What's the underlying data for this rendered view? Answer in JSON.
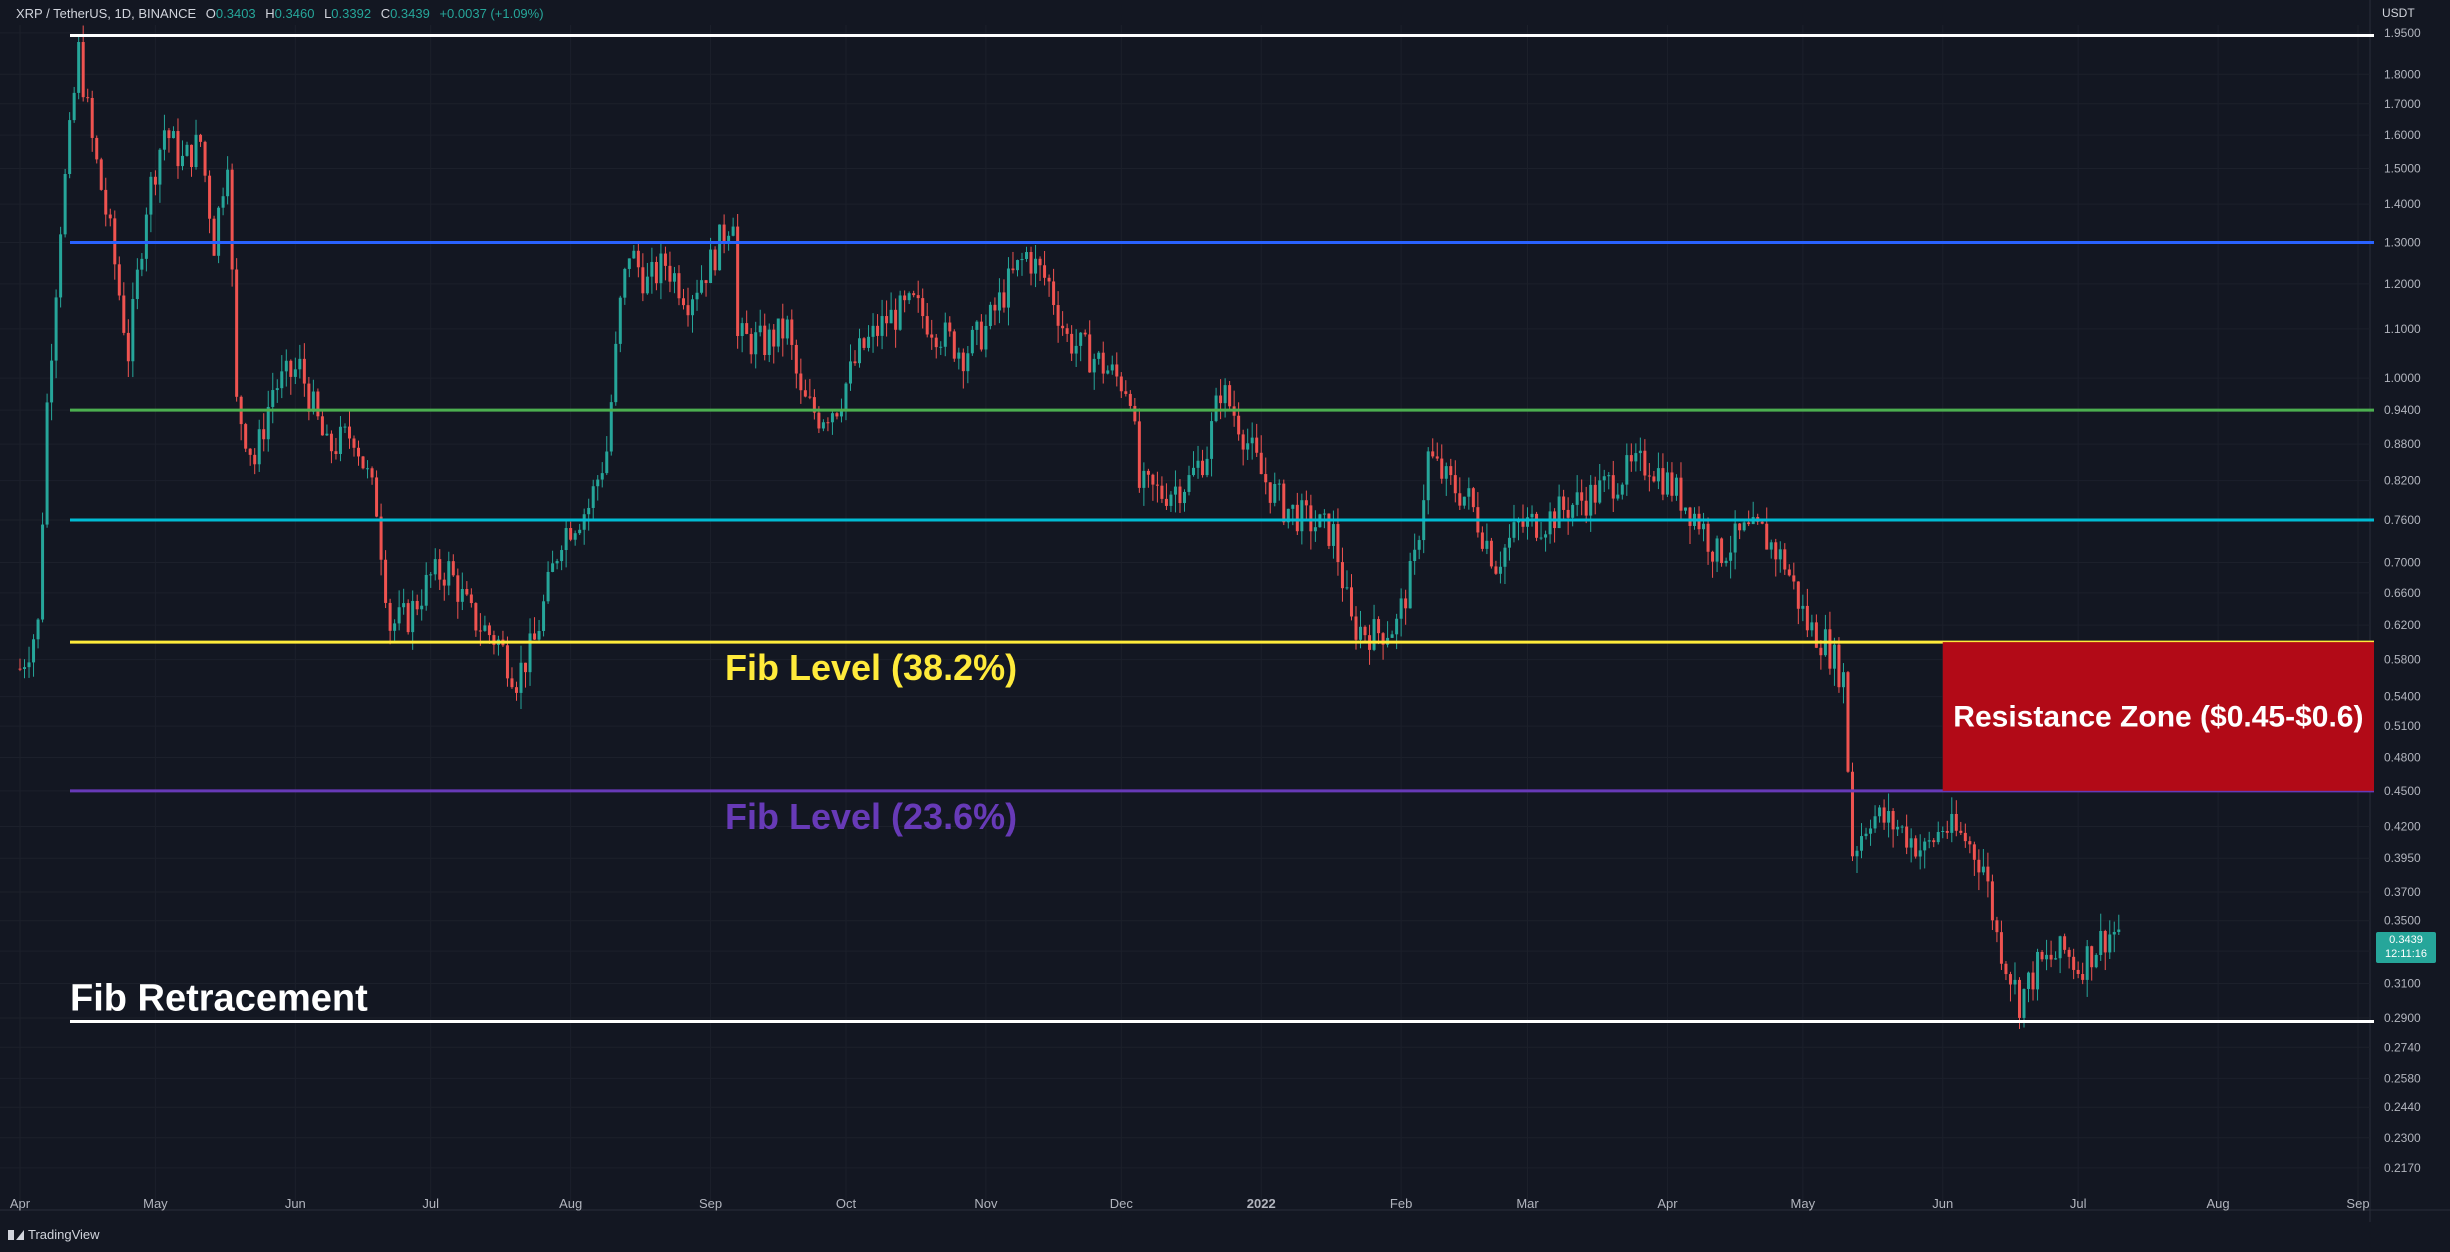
{
  "header": {
    "symbol": "XRP / TetherUS, 1D, BINANCE",
    "open_label": "O",
    "open": "0.3403",
    "high_label": "H",
    "high": "0.3460",
    "low_label": "L",
    "low": "0.3392",
    "close_label": "C",
    "close": "0.3439",
    "change": "+0.0037 (+1.09%)"
  },
  "axis_unit": "USDT",
  "last_price": {
    "value": "0.3439",
    "countdown": "12:11:16",
    "color": "#26a69a"
  },
  "footer": {
    "brand": "TradingView"
  },
  "colors": {
    "background": "#131722",
    "up": "#26a69a",
    "down": "#ef5350",
    "grid": "#1e222d"
  },
  "chart_data": {
    "type": "candlestick",
    "scale": "log",
    "ylim": [
      0.2,
      1.98
    ],
    "x_range": [
      "2021-04-01",
      "2022-09-01"
    ],
    "y_ticks": [
      "1.9500",
      "1.8000",
      "1.7000",
      "1.6000",
      "1.5000",
      "1.4000",
      "1.3000",
      "1.2000",
      "1.1000",
      "1.0000",
      "0.9400",
      "0.8800",
      "0.8200",
      "0.7600",
      "0.7000",
      "0.6600",
      "0.6200",
      "0.5800",
      "0.5400",
      "0.5100",
      "0.4800",
      "0.4500",
      "0.4200",
      "0.3950",
      "0.3700",
      "0.3500",
      "0.3300",
      "0.3100",
      "0.2900",
      "0.2740",
      "0.2580",
      "0.2440",
      "0.2300",
      "0.2170"
    ],
    "x_ticks": [
      {
        "label": "Apr",
        "date": "2021-04-01"
      },
      {
        "label": "May",
        "date": "2021-05-01"
      },
      {
        "label": "Jun",
        "date": "2021-06-01"
      },
      {
        "label": "Jul",
        "date": "2021-07-01"
      },
      {
        "label": "Aug",
        "date": "2021-08-01"
      },
      {
        "label": "Sep",
        "date": "2021-09-01"
      },
      {
        "label": "Oct",
        "date": "2021-10-01"
      },
      {
        "label": "Nov",
        "date": "2021-11-01"
      },
      {
        "label": "Dec",
        "date": "2021-12-01"
      },
      {
        "label": "2022",
        "date": "2022-01-01"
      },
      {
        "label": "Feb",
        "date": "2022-02-01"
      },
      {
        "label": "Mar",
        "date": "2022-03-01"
      },
      {
        "label": "Apr",
        "date": "2022-04-01"
      },
      {
        "label": "May",
        "date": "2022-05-01"
      },
      {
        "label": "Jun",
        "date": "2022-06-01"
      },
      {
        "label": "Jul",
        "date": "2022-07-01"
      },
      {
        "label": "Aug",
        "date": "2022-08-01"
      },
      {
        "label": "Sep",
        "date": "2022-09-01"
      }
    ],
    "price_path": [
      {
        "date": "2021-04-01",
        "price": 0.57
      },
      {
        "date": "2021-04-05",
        "price": 0.62
      },
      {
        "date": "2021-04-07",
        "price": 0.95
      },
      {
        "date": "2021-04-10",
        "price": 1.35
      },
      {
        "date": "2021-04-14",
        "price": 1.88
      },
      {
        "date": "2021-04-17",
        "price": 1.58
      },
      {
        "date": "2021-04-21",
        "price": 1.32
      },
      {
        "date": "2021-04-25",
        "price": 1.05
      },
      {
        "date": "2021-04-29",
        "price": 1.4
      },
      {
        "date": "2021-05-03",
        "price": 1.62
      },
      {
        "date": "2021-05-07",
        "price": 1.52
      },
      {
        "date": "2021-05-11",
        "price": 1.58
      },
      {
        "date": "2021-05-14",
        "price": 1.3
      },
      {
        "date": "2021-05-17",
        "price": 1.55
      },
      {
        "date": "2021-05-19",
        "price": 0.95
      },
      {
        "date": "2021-05-23",
        "price": 0.85
      },
      {
        "date": "2021-05-27",
        "price": 0.98
      },
      {
        "date": "2021-06-02",
        "price": 1.02
      },
      {
        "date": "2021-06-08",
        "price": 0.87
      },
      {
        "date": "2021-06-14",
        "price": 0.9
      },
      {
        "date": "2021-06-19",
        "price": 0.78
      },
      {
        "date": "2021-06-22",
        "price": 0.62
      },
      {
        "date": "2021-06-26",
        "price": 0.63
      },
      {
        "date": "2021-07-01",
        "price": 0.68
      },
      {
        "date": "2021-07-05",
        "price": 0.69
      },
      {
        "date": "2021-07-10",
        "price": 0.63
      },
      {
        "date": "2021-07-16",
        "price": 0.6
      },
      {
        "date": "2021-07-20",
        "price": 0.56
      },
      {
        "date": "2021-07-24",
        "price": 0.6
      },
      {
        "date": "2021-07-30",
        "price": 0.74
      },
      {
        "date": "2021-08-05",
        "price": 0.78
      },
      {
        "date": "2021-08-09",
        "price": 0.87
      },
      {
        "date": "2021-08-12",
        "price": 1.15
      },
      {
        "date": "2021-08-14",
        "price": 1.28
      },
      {
        "date": "2021-08-18",
        "price": 1.2
      },
      {
        "date": "2021-08-22",
        "price": 1.25
      },
      {
        "date": "2021-08-27",
        "price": 1.17
      },
      {
        "date": "2021-09-01",
        "price": 1.25
      },
      {
        "date": "2021-09-06",
        "price": 1.38
      },
      {
        "date": "2021-09-07",
        "price": 1.08
      },
      {
        "date": "2021-09-13",
        "price": 1.07
      },
      {
        "date": "2021-09-18",
        "price": 1.1
      },
      {
        "date": "2021-09-21",
        "price": 0.96
      },
      {
        "date": "2021-09-25",
        "price": 0.93
      },
      {
        "date": "2021-09-29",
        "price": 0.95
      },
      {
        "date": "2021-10-04",
        "price": 1.05
      },
      {
        "date": "2021-10-10",
        "price": 1.12
      },
      {
        "date": "2021-10-16",
        "price": 1.15
      },
      {
        "date": "2021-10-21",
        "price": 1.1
      },
      {
        "date": "2021-10-27",
        "price": 1.05
      },
      {
        "date": "2021-11-01",
        "price": 1.1
      },
      {
        "date": "2021-11-06",
        "price": 1.2
      },
      {
        "date": "2021-11-10",
        "price": 1.27
      },
      {
        "date": "2021-11-15",
        "price": 1.2
      },
      {
        "date": "2021-11-19",
        "price": 1.08
      },
      {
        "date": "2021-11-25",
        "price": 1.04
      },
      {
        "date": "2021-11-30",
        "price": 1.0
      },
      {
        "date": "2021-12-03",
        "price": 0.98
      },
      {
        "date": "2021-12-05",
        "price": 0.81
      },
      {
        "date": "2021-12-10",
        "price": 0.8
      },
      {
        "date": "2021-12-16",
        "price": 0.82
      },
      {
        "date": "2021-12-20",
        "price": 0.87
      },
      {
        "date": "2021-12-23",
        "price": 0.98
      },
      {
        "date": "2021-12-27",
        "price": 0.92
      },
      {
        "date": "2022-01-01",
        "price": 0.83
      },
      {
        "date": "2022-01-06",
        "price": 0.78
      },
      {
        "date": "2022-01-11",
        "price": 0.76
      },
      {
        "date": "2022-01-17",
        "price": 0.74
      },
      {
        "date": "2022-01-21",
        "price": 0.62
      },
      {
        "date": "2022-01-26",
        "price": 0.61
      },
      {
        "date": "2022-01-31",
        "price": 0.62
      },
      {
        "date": "2022-02-04",
        "price": 0.7
      },
      {
        "date": "2022-02-07",
        "price": 0.86
      },
      {
        "date": "2022-02-11",
        "price": 0.82
      },
      {
        "date": "2022-02-16",
        "price": 0.79
      },
      {
        "date": "2022-02-22",
        "price": 0.7
      },
      {
        "date": "2022-02-27",
        "price": 0.75
      },
      {
        "date": "2022-03-05",
        "price": 0.76
      },
      {
        "date": "2022-03-10",
        "price": 0.78
      },
      {
        "date": "2022-03-16",
        "price": 0.8
      },
      {
        "date": "2022-03-22",
        "price": 0.83
      },
      {
        "date": "2022-03-28",
        "price": 0.85
      },
      {
        "date": "2022-04-02",
        "price": 0.81
      },
      {
        "date": "2022-04-08",
        "price": 0.76
      },
      {
        "date": "2022-04-12",
        "price": 0.71
      },
      {
        "date": "2022-04-18",
        "price": 0.74
      },
      {
        "date": "2022-04-22",
        "price": 0.74
      },
      {
        "date": "2022-04-27",
        "price": 0.7
      },
      {
        "date": "2022-05-02",
        "price": 0.62
      },
      {
        "date": "2022-05-06",
        "price": 0.6
      },
      {
        "date": "2022-05-10",
        "price": 0.56
      },
      {
        "date": "2022-05-12",
        "price": 0.4
      },
      {
        "date": "2022-05-16",
        "price": 0.43
      },
      {
        "date": "2022-05-22",
        "price": 0.42
      },
      {
        "date": "2022-05-28",
        "price": 0.4
      },
      {
        "date": "2022-06-01",
        "price": 0.42
      },
      {
        "date": "2022-06-06",
        "price": 0.41
      },
      {
        "date": "2022-06-10",
        "price": 0.39
      },
      {
        "date": "2022-06-13",
        "price": 0.34
      },
      {
        "date": "2022-06-18",
        "price": 0.3
      },
      {
        "date": "2022-06-22",
        "price": 0.32
      },
      {
        "date": "2022-06-28",
        "price": 0.33
      },
      {
        "date": "2022-07-01",
        "price": 0.32
      },
      {
        "date": "2022-07-04",
        "price": 0.33
      },
      {
        "date": "2022-07-07",
        "price": 0.34
      },
      {
        "date": "2022-07-10",
        "price": 0.3439
      }
    ],
    "horizontal_lines": [
      {
        "price": 1.94,
        "color": "#ffffff"
      },
      {
        "price": 1.3,
        "color": "#2962ff"
      },
      {
        "price": 0.94,
        "color": "#4caf50"
      },
      {
        "price": 0.76,
        "color": "#00bcd4"
      },
      {
        "price": 0.6,
        "color": "#ffeb3b"
      },
      {
        "price": 0.45,
        "color": "#673ab7"
      },
      {
        "price": 0.288,
        "color": "#ffffff"
      }
    ],
    "annotations": [
      {
        "text": "Fib Level (38.2%)",
        "color": "#ffeb3b"
      },
      {
        "text": "Fib Level (23.6%)",
        "color": "#673ab7"
      },
      {
        "text": "Fib Retracement",
        "color": "#ffffff"
      }
    ],
    "zones": [
      {
        "label": "Resistance Zone ($0.45-$0.6)",
        "from_date": "2022-06-01",
        "low": 0.45,
        "high": 0.6,
        "color": "#b20a17"
      }
    ]
  }
}
